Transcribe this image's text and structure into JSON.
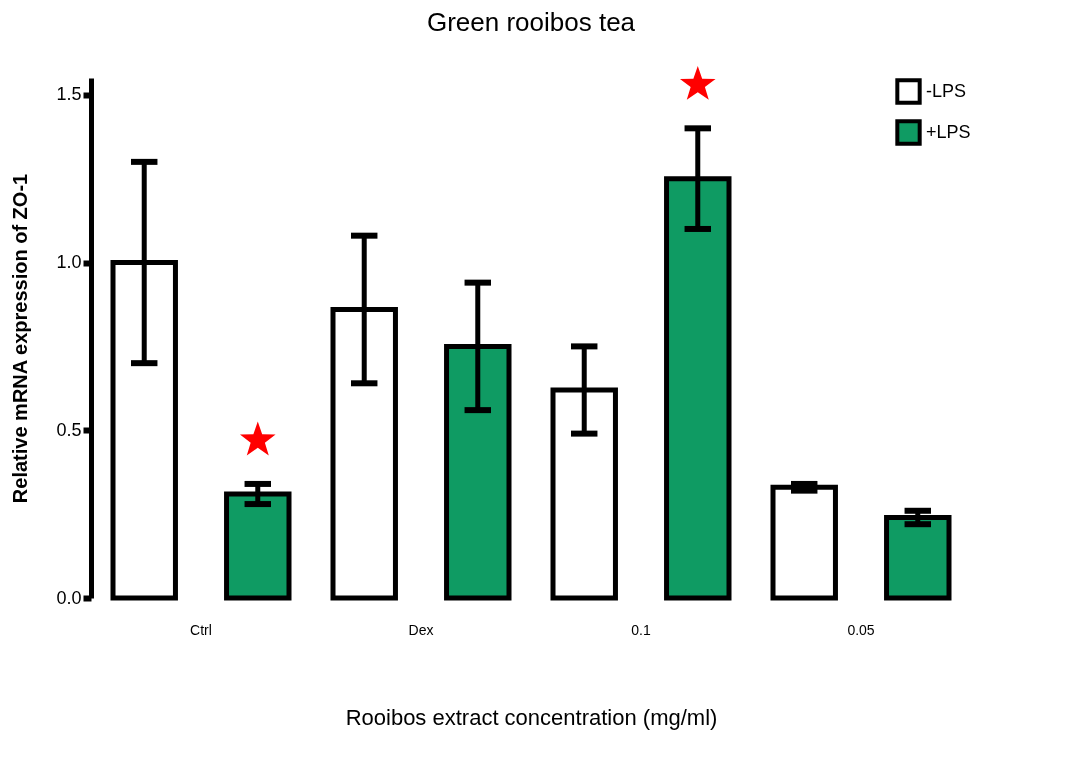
{
  "chart_data": {
    "type": "bar",
    "title": "Green rooibos tea",
    "xlabel": "Rooibos extract concentration (mg/ml)",
    "ylabel": "Relative mRNA expression of ZO-1",
    "categories": [
      "Ctrl",
      "Dex",
      "0.1",
      "0.05"
    ],
    "series": [
      {
        "name": "-LPS",
        "color": "#ffffff",
        "values": [
          1.0,
          0.86,
          0.62,
          0.33
        ],
        "errors": [
          [
            0.7,
            1.3
          ],
          [
            0.64,
            1.08
          ],
          [
            0.49,
            0.75
          ],
          [
            0.32,
            0.34
          ]
        ]
      },
      {
        "name": "+LPS",
        "color": "#0f9b63",
        "values": [
          0.31,
          0.75,
          1.25,
          0.24
        ],
        "errors": [
          [
            0.28,
            0.34
          ],
          [
            0.56,
            0.94
          ],
          [
            1.1,
            1.4
          ],
          [
            0.22,
            0.26
          ]
        ]
      },
      {
        "type": "scatter",
        "marker": "star",
        "color": "#ff0000",
        "x": [
          "Ctrl",
          "0.1"
        ],
        "values": [
          0.47,
          1.53
        ]
      }
    ],
    "ylim": [
      0,
      1.55
    ],
    "yticks": [
      {
        "value": 0,
        "label": "0.0"
      },
      {
        "value": 0.5,
        "label": "0.5"
      },
      {
        "value": 1,
        "label": "1.0"
      },
      {
        "value": 1.5,
        "label": "1.5"
      }
    ],
    "grid": false,
    "legend": "top right"
  }
}
